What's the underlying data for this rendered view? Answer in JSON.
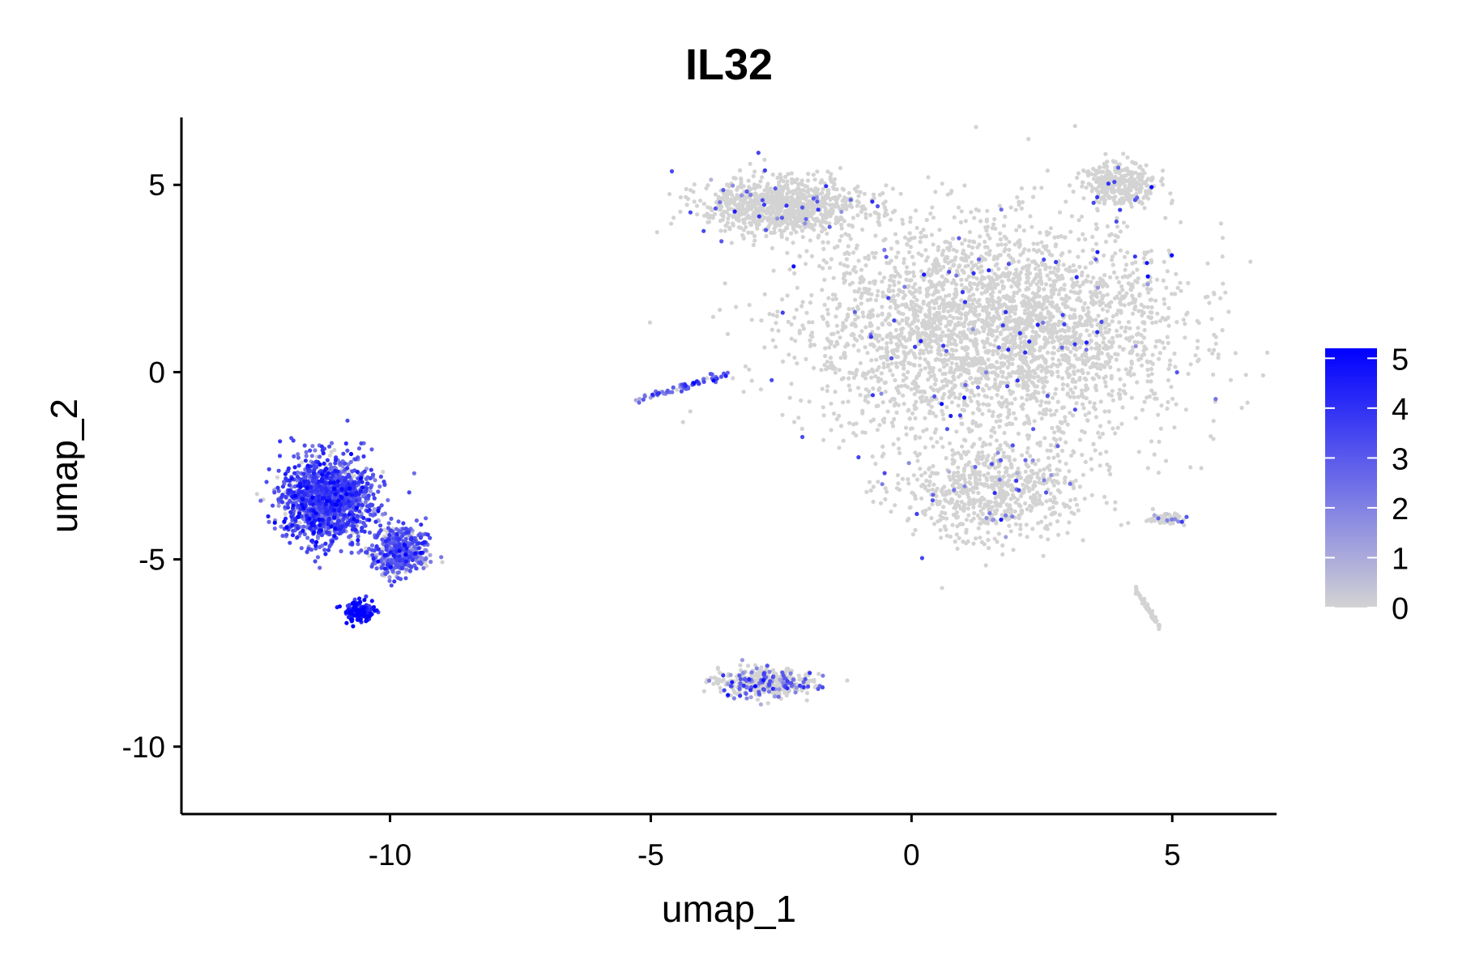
{
  "chart_data": {
    "type": "scatter",
    "title": "IL32",
    "xlabel": "umap_1",
    "ylabel": "umap_2",
    "xlim": [
      -14,
      7
    ],
    "ylim": [
      -11.8,
      6.8
    ],
    "x_ticks": [
      -10,
      -5,
      0,
      5
    ],
    "y_ticks": [
      -10,
      -5,
      0,
      5
    ],
    "x_tick_labels": [
      "-10",
      "-5",
      "0",
      "5"
    ],
    "y_tick_labels": [
      "-10",
      "-5",
      "0",
      "5"
    ],
    "grid": false,
    "color_scale": {
      "label_values": [
        5,
        4,
        3,
        2,
        1,
        0
      ],
      "labels": [
        "5",
        "4",
        "3",
        "2",
        "1",
        "0"
      ],
      "min": 0,
      "max": 5.2,
      "low_color": "#d3d3d3",
      "high_color": "#0000ff",
      "legend_position": "right"
    },
    "point_color_background": "#d3d3d3",
    "clusters": [
      {
        "name": "large-right-cluster",
        "cx": 1.6,
        "cy": 1.1,
        "sx": 3.2,
        "sy": 2.6,
        "n": 3200,
        "expr_rate": 0.02,
        "expr_mean": 3.5
      },
      {
        "name": "lower-right-lobe",
        "cx": 1.6,
        "cy": -3.2,
        "sx": 1.6,
        "sy": 1.2,
        "n": 700,
        "expr_rate": 0.05,
        "expr_mean": 2.5
      },
      {
        "name": "upper-middle-cluster",
        "cx": -2.5,
        "cy": 4.4,
        "sx": 1.4,
        "sy": 0.7,
        "n": 900,
        "expr_rate": 0.04,
        "expr_mean": 3.0
      },
      {
        "name": "top-right-cluster",
        "cx": 4.0,
        "cy": 5.0,
        "sx": 0.6,
        "sy": 0.5,
        "n": 300,
        "expr_rate": 0.03,
        "expr_mean": 3.5
      },
      {
        "name": "left-expressing-cluster",
        "cx": -11.2,
        "cy": -3.4,
        "sx": 0.8,
        "sy": 1.0,
        "n": 1400,
        "expr_rate": 0.92,
        "expr_mean": 3.2
      },
      {
        "name": "left-cluster-tail",
        "cx": -9.8,
        "cy": -4.8,
        "sx": 0.5,
        "sy": 0.6,
        "n": 450,
        "expr_rate": 0.85,
        "expr_mean": 2.8
      },
      {
        "name": "left-cluster-tip",
        "cx": -10.6,
        "cy": -6.4,
        "sx": 0.25,
        "sy": 0.25,
        "n": 160,
        "expr_rate": 1.0,
        "expr_mean": 4.6
      },
      {
        "name": "bottom-cluster",
        "cx": -2.8,
        "cy": -8.3,
        "sx": 0.8,
        "sy": 0.35,
        "n": 420,
        "expr_rate": 0.25,
        "expr_mean": 2.5
      },
      {
        "name": "thin-strand",
        "cx": -4.4,
        "cy": -0.4,
        "sx": 0.5,
        "sy": 0.15,
        "n": 70,
        "expr_rate": 0.9,
        "expr_mean": 2.8
      },
      {
        "name": "small-bottom-right",
        "cx": 4.8,
        "cy": -6.4,
        "sx": 0.15,
        "sy": 0.4,
        "n": 60,
        "expr_rate": 0.0,
        "expr_mean": 0
      },
      {
        "name": "tiny-right-blob",
        "cx": 4.9,
        "cy": -3.9,
        "sx": 0.3,
        "sy": 0.15,
        "n": 60,
        "expr_rate": 0.1,
        "expr_mean": 2.0
      }
    ]
  }
}
